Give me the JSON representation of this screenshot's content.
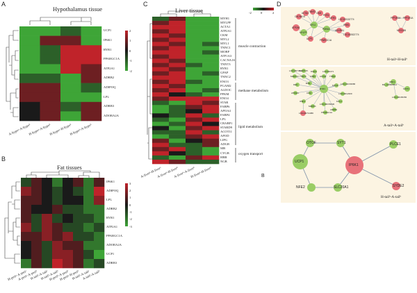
{
  "panelA": {
    "letter": "A",
    "title": "Hypothalamus tissue",
    "rows": [
      "UCP1",
      "IP6K1",
      "RYR1",
      "PPARGC1A",
      "ATP2A1",
      "ADRB2",
      "ADIPOQ",
      "LPL",
      "ADRB3",
      "ADORA2A"
    ],
    "cols": [
      "A-hypoᵃ-A-hypoᵇ",
      "H-hypoᵃ-A-hypoᵇ",
      "H-hypoᵃ-H-hypoᵇ",
      "H-hypoᵇ-A-hypoᵇ"
    ],
    "scale": [
      "2",
      "1",
      "0",
      "-1",
      "-2"
    ],
    "values": [
      [
        -2,
        -2,
        -1,
        -2
      ],
      [
        -2,
        1,
        1,
        -2
      ],
      [
        -2,
        -1,
        2,
        2
      ],
      [
        -2,
        -1,
        2,
        2
      ],
      [
        -2,
        -2,
        2,
        1
      ],
      [
        -1,
        -1,
        -2,
        1
      ],
      [
        1,
        1,
        -2,
        -1
      ],
      [
        1,
        1,
        -2,
        -2
      ],
      [
        0,
        1,
        -1,
        1
      ],
      [
        0,
        1,
        -2,
        1
      ]
    ]
  },
  "panelB": {
    "letter": "B",
    "title": "Fat tissues",
    "rows": [
      "IP6K1",
      "ADIPOQ",
      "LPL",
      "ADRB2",
      "RYR1",
      "ATP2A1",
      "PPARGC1A",
      "ADORA2A",
      "UCP1",
      "ADRB3"
    ],
    "cols": [
      "H-periᵃ-A-periᵃ",
      "A-periᵃ-A-periᵇ",
      "H-tailᵃ-A-tailᵃ",
      "H-tailᵇ-A-tailᵇ",
      "H-periᵇ-A-periᵇ",
      "H-periᵃ-H-periᵇ",
      "H-tailᵃ-A-tailᵃ",
      "A-tailᵃ-A-tailᵇ"
    ],
    "scale": [
      "3",
      "2",
      "1",
      "0",
      "-1",
      "-2",
      "-3"
    ],
    "values": [
      [
        -1,
        1,
        0,
        -2,
        0,
        1,
        -2,
        1
      ],
      [
        2,
        1,
        0,
        -1,
        0,
        -1,
        -2,
        3
      ],
      [
        1,
        1,
        0,
        -1,
        0,
        0,
        -2,
        2
      ],
      [
        1,
        0,
        0,
        1,
        -1,
        -1,
        -2,
        -2
      ],
      [
        1,
        -1,
        2,
        -1,
        0,
        -1,
        -1,
        -2
      ],
      [
        2,
        -1,
        2,
        1,
        -1,
        -1,
        -2,
        -1
      ],
      [
        1,
        1,
        2,
        1,
        2,
        -1,
        -1,
        -2
      ],
      [
        0,
        1,
        -1,
        2,
        1,
        1,
        -2,
        -2
      ],
      [
        0,
        1,
        -1,
        2,
        2,
        1,
        -1,
        -3
      ],
      [
        -2,
        1,
        -1,
        3,
        2,
        1,
        -2,
        -1
      ]
    ]
  },
  "panelC": {
    "letter": "C",
    "title": "Liver tissue",
    "scale": [
      "-2",
      "0",
      "2"
    ],
    "rows": [
      "MYH1",
      "MYLPF",
      "ACTA1",
      "ATP2A1",
      "CKM",
      "MYL2",
      "MYL1",
      "TNNC1",
      "MOBP",
      "ATP1A3",
      "CACNA1S",
      "TNNT3",
      "RYR1",
      "GFAP",
      "TNNC2",
      "ENO3",
      "PGAM2",
      "ALDOC",
      "PFKM",
      "ENO4",
      "STAR",
      "FABP6",
      "APOA4",
      "FABP4",
      "LPL",
      "CRABP1",
      "STARD9",
      "ACOT11",
      "APOD",
      "LIPG",
      "ADGB",
      "MB",
      "CYGB",
      "HBB",
      "NGB"
    ],
    "cols": [
      "A-liverᵃ-H-liverᵃ",
      "A-liverᵃ-H-liverᵇ",
      "A-liverᵃ-A-liverᵇ",
      "H-liverᵃ-H-liverᵇ"
    ],
    "groups": [
      "muscle contraction",
      "methane metabolism",
      "lipid metabolism",
      "oxygen transport"
    ],
    "values": [
      [
        -1,
        1,
        -2,
        -2
      ],
      [
        1,
        2,
        -2,
        -2
      ],
      [
        2,
        2,
        -2,
        -2
      ],
      [
        1,
        2,
        -2,
        -2
      ],
      [
        2,
        1,
        -2,
        -2
      ],
      [
        1,
        2,
        -2,
        -2
      ],
      [
        2,
        1,
        -2,
        -1
      ],
      [
        1,
        2,
        -2,
        -2
      ],
      [
        2,
        2,
        -2,
        -1
      ],
      [
        1,
        2,
        -2,
        -2
      ],
      [
        2,
        1,
        -2,
        -2
      ],
      [
        1,
        2,
        -1,
        -2
      ],
      [
        2,
        1,
        -2,
        -2
      ],
      [
        1,
        2,
        -2,
        -1
      ],
      [
        2,
        2,
        -2,
        -2
      ],
      [
        1,
        2,
        -1,
        -2
      ],
      [
        2,
        1,
        -2,
        -2
      ],
      [
        1,
        2,
        -2,
        -1
      ],
      [
        2,
        0,
        -1,
        -2
      ],
      [
        1,
        2,
        2,
        2
      ],
      [
        -1,
        -2,
        2,
        1
      ],
      [
        -2,
        -1,
        1,
        2
      ],
      [
        -2,
        -1,
        0,
        2
      ],
      [
        0,
        -1,
        2,
        -1
      ],
      [
        -1,
        -2,
        1,
        2
      ],
      [
        -2,
        -1,
        2,
        0
      ],
      [
        0,
        -2,
        1,
        2
      ],
      [
        -1,
        -1,
        2,
        -1
      ],
      [
        -2,
        -1,
        1,
        2
      ],
      [
        1,
        -2,
        0,
        1
      ],
      [
        2,
        -1,
        -1,
        1
      ],
      [
        1,
        2,
        -1,
        -2
      ],
      [
        2,
        0,
        -1,
        -2
      ],
      [
        -1,
        -2,
        1,
        2
      ],
      [
        2,
        1,
        -1,
        -1
      ]
    ],
    "footer_letter": "B"
  },
  "panelD": {
    "letter": "D",
    "net1": {
      "caption": "H-tailᵃ-H-tailᵇ",
      "labels": [
        "CACNA1S",
        "ACTA1",
        "TNNT3",
        "CKM",
        "RYR1",
        "MYH1",
        "ATP2A1",
        "MYLPF",
        "MYL1",
        "PDE6A",
        "ADORA1",
        "IP6K1",
        "UCP1",
        "PPARGC1A",
        "LOC100152774",
        "LOC100522774",
        "PPP1R3A",
        "PPP1R1A",
        "MYO18B"
      ]
    },
    "net2": {
      "caption": "A-tailᵃ-A-tailᵇ",
      "labels": [
        "LOC100738497",
        "MAPK15",
        "DGKG",
        "LOC494471",
        "MAPK13",
        "TNNT3",
        "SSR1",
        "ACTA1",
        "TNNI2",
        "DES",
        "BIN1",
        "RYR1",
        "MYH1",
        "LOC102163986",
        "ATP2A1",
        "CKM",
        "IP6K1",
        "MAPKS",
        "LOC100153930",
        "MYL1",
        "LOC10012309",
        "LOC100711980",
        "ADRB2",
        "PPARGC1A",
        "IP6K1",
        "MYPN",
        "LOC100165356",
        "BG_100802914"
      ]
    },
    "net3": {
      "caption": "H-tailᵇ-A-tailᵇ",
      "labels": [
        "OTOF",
        "SYT1",
        "PLCE1",
        "UCP1",
        "IP6K1",
        "NFE2",
        "SLC20A1",
        "SYDE2"
      ]
    }
  },
  "colors": {
    "heat_high": "#c0232a",
    "heat_mid": "#1a1a1a",
    "heat_low": "#3ea537",
    "node_green": "#9acd65",
    "node_red": "#e8727a",
    "edge": "#7a8fa8",
    "net_bg": "#fcf4e2"
  }
}
